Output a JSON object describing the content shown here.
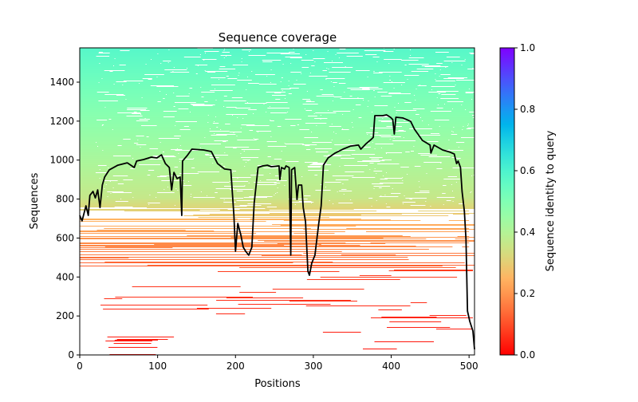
{
  "chart_data": {
    "type": "heatmap",
    "title": "Sequence coverage",
    "xlabel": "Positions",
    "ylabel": "Sequences",
    "xlim": [
      0,
      507
    ],
    "ylim": [
      0,
      1576
    ],
    "xticks": [
      "0",
      "100",
      "200",
      "300",
      "400",
      "500"
    ],
    "yticks": [
      "0",
      "200",
      "400",
      "600",
      "800",
      "1000",
      "1200",
      "1400"
    ],
    "grid": false,
    "colormap": "rainbow_r",
    "colorbar": {
      "label": "Sequence identity to query",
      "range": [
        0,
        1
      ],
      "ticks": [
        "0.0",
        "0.2",
        "0.4",
        "0.6",
        "0.8",
        "1.0"
      ]
    },
    "coverage_line": {
      "color": "#000000",
      "x": [
        0,
        3,
        8,
        11,
        13,
        17,
        20,
        23,
        26,
        29,
        32,
        38,
        49,
        61,
        70,
        73,
        82,
        92,
        99,
        105,
        110,
        115,
        118,
        121,
        125,
        129,
        131,
        132,
        138,
        144,
        159,
        169,
        177,
        186,
        194,
        198,
        200,
        203,
        207,
        210,
        213,
        217,
        221,
        224,
        229,
        235,
        241,
        246,
        256,
        257,
        259,
        263,
        265,
        269,
        271,
        272,
        276,
        279,
        281,
        285,
        287,
        290,
        293,
        295,
        298,
        302,
        307,
        310,
        313,
        319,
        328,
        338,
        348,
        358,
        361,
        368,
        374,
        377,
        379,
        389,
        394,
        399,
        402,
        404,
        406,
        415,
        425,
        430,
        440,
        450,
        451,
        455,
        466,
        476,
        481,
        484,
        486,
        489,
        491,
        494,
        496,
        498,
        501,
        505,
        507
      ],
      "y": [
        716,
        688,
        765,
        716,
        819,
        839,
        806,
        847,
        757,
        872,
        913,
        950,
        974,
        986,
        962,
        995,
        1003,
        1015,
        1011,
        1027,
        982,
        962,
        847,
        937,
        905,
        913,
        716,
        995,
        1023,
        1056,
        1052,
        1044,
        982,
        954,
        950,
        716,
        532,
        675,
        614,
        553,
        532,
        512,
        553,
        778,
        962,
        970,
        974,
        966,
        970,
        900,
        962,
        954,
        970,
        962,
        512,
        950,
        962,
        798,
        872,
        872,
        757,
        684,
        430,
        409,
        471,
        512,
        675,
        765,
        974,
        1011,
        1036,
        1056,
        1072,
        1077,
        1056,
        1085,
        1105,
        1117,
        1228,
        1228,
        1232,
        1220,
        1208,
        1134,
        1220,
        1216,
        1199,
        1158,
        1101,
        1077,
        1036,
        1077,
        1052,
        1040,
        1031,
        982,
        995,
        962,
        839,
        737,
        594,
        225,
        172,
        123,
        29
      ]
    }
  }
}
